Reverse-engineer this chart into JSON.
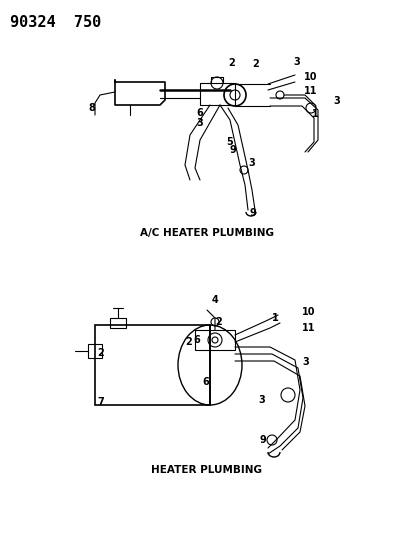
{
  "title_code": "90324  750",
  "bg_color": "#ffffff",
  "text_color": "#000000",
  "diagram1_label": "A/C HEATER PLUMBING",
  "diagram2_label": "HEATER PLUMBING",
  "header_fontsize": 11,
  "label_fontsize": 7.5,
  "callout_fontsize": 7,
  "nums_d1": [
    [
      "2",
      228,
      63
    ],
    [
      "2",
      252,
      64
    ],
    [
      "3",
      293,
      62
    ],
    [
      "3",
      333,
      101
    ],
    [
      "3",
      196,
      123
    ],
    [
      "3",
      248,
      163
    ],
    [
      "1",
      312,
      114
    ],
    [
      "5",
      226,
      142
    ],
    [
      "6",
      196,
      113
    ],
    [
      "8",
      88,
      108
    ],
    [
      "9",
      230,
      150
    ],
    [
      "9",
      250,
      213
    ],
    [
      "10",
      304,
      77
    ],
    [
      "11",
      304,
      91
    ]
  ],
  "nums_d2": [
    [
      "1",
      272,
      318
    ],
    [
      "2",
      215,
      322
    ],
    [
      "2",
      185,
      342
    ],
    [
      "2",
      97,
      353
    ],
    [
      "3",
      302,
      362
    ],
    [
      "3",
      258,
      400
    ],
    [
      "4",
      212,
      300
    ],
    [
      "6",
      202,
      382
    ],
    [
      "6",
      193,
      340
    ],
    [
      "7",
      97,
      402
    ],
    [
      "9",
      260,
      440
    ],
    [
      "10",
      302,
      312
    ],
    [
      "11",
      302,
      328
    ]
  ]
}
